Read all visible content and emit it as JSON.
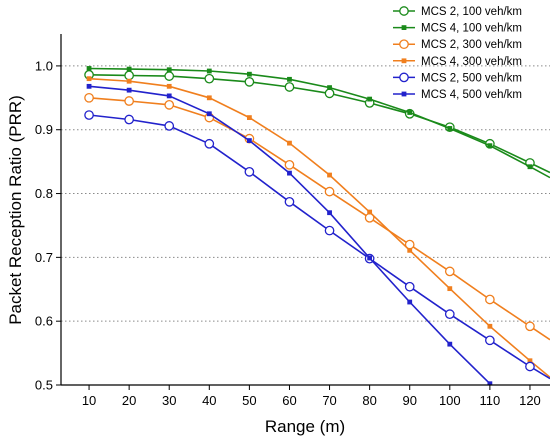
{
  "chart_data": {
    "type": "line",
    "title": "",
    "xlabel": "Range (m)",
    "ylabel": "Packet Reception Ratio (PRR)",
    "xlim": [
      3,
      125
    ],
    "ylim": [
      0.5,
      1.05
    ],
    "x_ticks": [
      10,
      20,
      30,
      40,
      50,
      60,
      70,
      80,
      90,
      100,
      110,
      120
    ],
    "x_tick_labels": [
      "10",
      "20",
      "30",
      "40",
      "50",
      "60",
      "70",
      "80",
      "90",
      "100",
      "110",
      "120"
    ],
    "y_ticks": [
      0.5,
      0.6,
      0.7,
      0.8,
      0.9,
      1.0
    ],
    "y_tick_labels": [
      "0.5",
      "0.6",
      "0.7",
      "0.8",
      "0.9",
      "1.0"
    ],
    "grid": "horizontal dotted",
    "legend_position": "top-right",
    "x": [
      10,
      20,
      30,
      40,
      50,
      60,
      70,
      80,
      90,
      100,
      110,
      120,
      125
    ],
    "series": [
      {
        "name": "MCS 2, 100 veh/km",
        "color": "#1a8a1a",
        "marker": "open-circle",
        "values": [
          0.986,
          0.985,
          0.984,
          0.98,
          0.975,
          0.967,
          0.957,
          0.942,
          0.925,
          0.904,
          0.878,
          0.848,
          0.833
        ]
      },
      {
        "name": "MCS 4, 100 veh/km",
        "color": "#1a8a1a",
        "marker": "filled-square",
        "values": [
          0.996,
          0.995,
          0.994,
          0.992,
          0.987,
          0.979,
          0.966,
          0.948,
          0.927,
          0.902,
          0.875,
          0.842,
          0.825
        ]
      },
      {
        "name": "MCS 2, 300 veh/km",
        "color": "#f07f1e",
        "marker": "open-circle",
        "values": [
          0.95,
          0.945,
          0.939,
          0.919,
          0.886,
          0.845,
          0.803,
          0.762,
          0.72,
          0.678,
          0.634,
          0.592,
          0.571
        ]
      },
      {
        "name": "MCS 4, 300 veh/km",
        "color": "#f07f1e",
        "marker": "filled-square",
        "values": [
          0.98,
          0.976,
          0.968,
          0.95,
          0.919,
          0.879,
          0.829,
          0.771,
          0.711,
          0.651,
          0.592,
          0.538,
          0.512
        ]
      },
      {
        "name": "MCS 2, 500 veh/km",
        "color": "#2222cc",
        "marker": "open-circle",
        "values": [
          0.923,
          0.916,
          0.906,
          0.878,
          0.834,
          0.787,
          0.742,
          0.698,
          0.654,
          0.611,
          0.57,
          0.529,
          0.51
        ]
      },
      {
        "name": "MCS 4, 500 veh/km",
        "color": "#2222cc",
        "marker": "filled-square",
        "values": [
          0.968,
          0.962,
          0.953,
          0.925,
          0.883,
          0.832,
          0.77,
          0.699,
          0.63,
          0.564,
          0.502,
          null,
          null
        ]
      }
    ]
  }
}
